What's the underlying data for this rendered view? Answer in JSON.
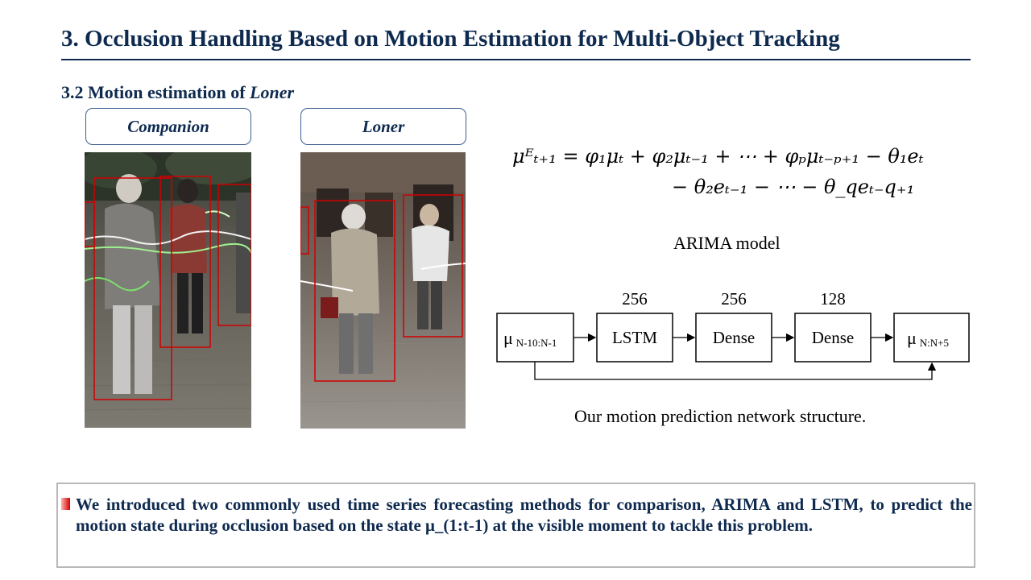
{
  "slide": {
    "title": "3. Occlusion Handling Based on Motion Estimation for Multi-Object Tracking",
    "section_prefix": "3.2 Motion estimation of ",
    "section_italic": "Loner"
  },
  "panels": {
    "companion_label": "Companion",
    "loner_label": "Loner"
  },
  "formula": {
    "line1": "μᴱₜ₊₁ = φ₁μₜ + φ₂μₜ₋₁ + ⋯ + φₚμₜ₋ₚ₊₁ − θ₁eₜ",
    "line2": "− θ₂eₜ₋₁ − ⋯ − θ_qeₜ₋q₊₁",
    "caption": "ARIMA model"
  },
  "network": {
    "input_symbol": "μ",
    "input_sub": "N-10:N-1",
    "layers": [
      {
        "label": "LSTM",
        "units": "256"
      },
      {
        "label": "Dense",
        "units": "256"
      },
      {
        "label": "Dense",
        "units": "128"
      }
    ],
    "output_symbol": "μ",
    "output_sub": "N:N+5",
    "caption": "Our motion prediction network structure."
  },
  "summary": {
    "text": "We introduced two commonly used time series forecasting methods for comparison, ARIMA and LSTM,  to predict the motion state during occlusion based on the state μ_(1:t-1) at the visible moment to tackle this problem.",
    "bullet_color": "#d40000"
  },
  "colors": {
    "heading": "#0e2a4f",
    "box_outline": "#d00000"
  }
}
